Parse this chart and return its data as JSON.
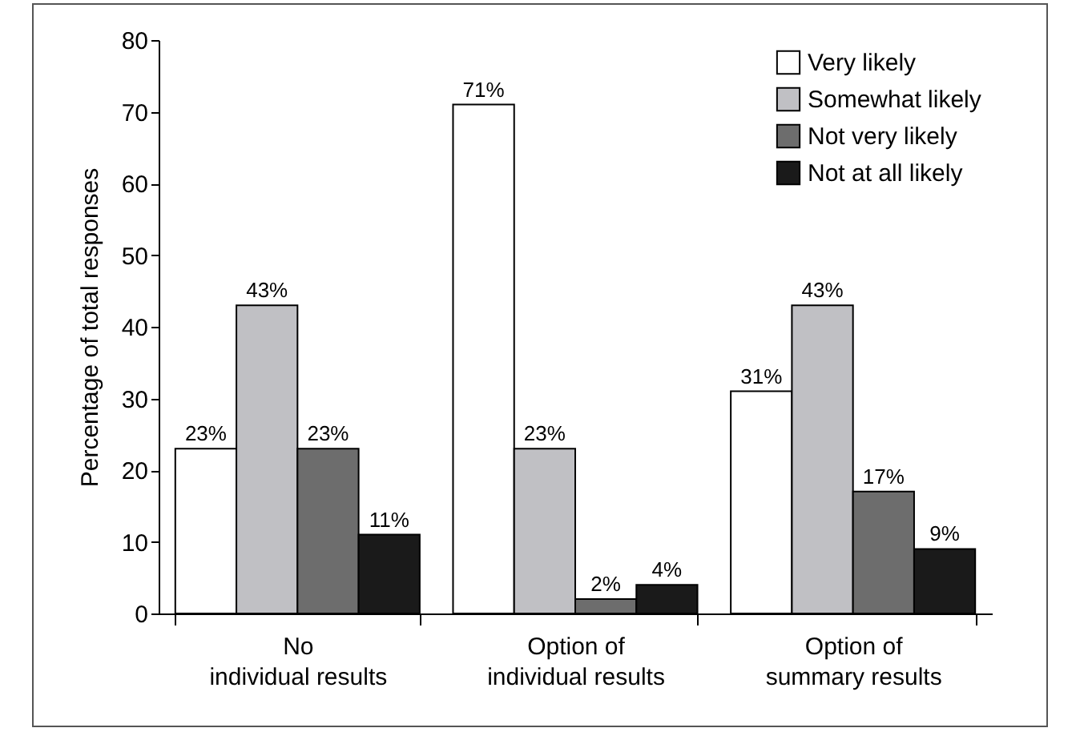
{
  "chart_data": {
    "type": "bar",
    "ylabel": "Percentage of total responses",
    "categories": [
      "No\nindividual results",
      "Option of\nindividual results",
      "Option of\nsummary results"
    ],
    "series": [
      {
        "name": "Very likely",
        "color": "#ffffff",
        "values": [
          23,
          71,
          31
        ],
        "value_labels": [
          "23%",
          "71%",
          "31%"
        ]
      },
      {
        "name": "Somewhat likely",
        "color": "#c0c0c4",
        "values": [
          43,
          23,
          43
        ],
        "value_labels": [
          "43%",
          "23%",
          "43%"
        ]
      },
      {
        "name": "Not very likely",
        "color": "#6d6d6d",
        "values": [
          23,
          2,
          17
        ],
        "value_labels": [
          "23%",
          "2%",
          "17%"
        ]
      },
      {
        "name": "Not at all likely",
        "color": "#1a1a1a",
        "values": [
          11,
          4,
          9
        ],
        "value_labels": [
          "11%",
          "4%",
          "9%"
        ]
      }
    ],
    "ylim": [
      0,
      80
    ],
    "yticks": [
      0,
      10,
      20,
      30,
      40,
      50,
      60,
      70,
      80
    ],
    "grid": false,
    "legend": "top right"
  }
}
